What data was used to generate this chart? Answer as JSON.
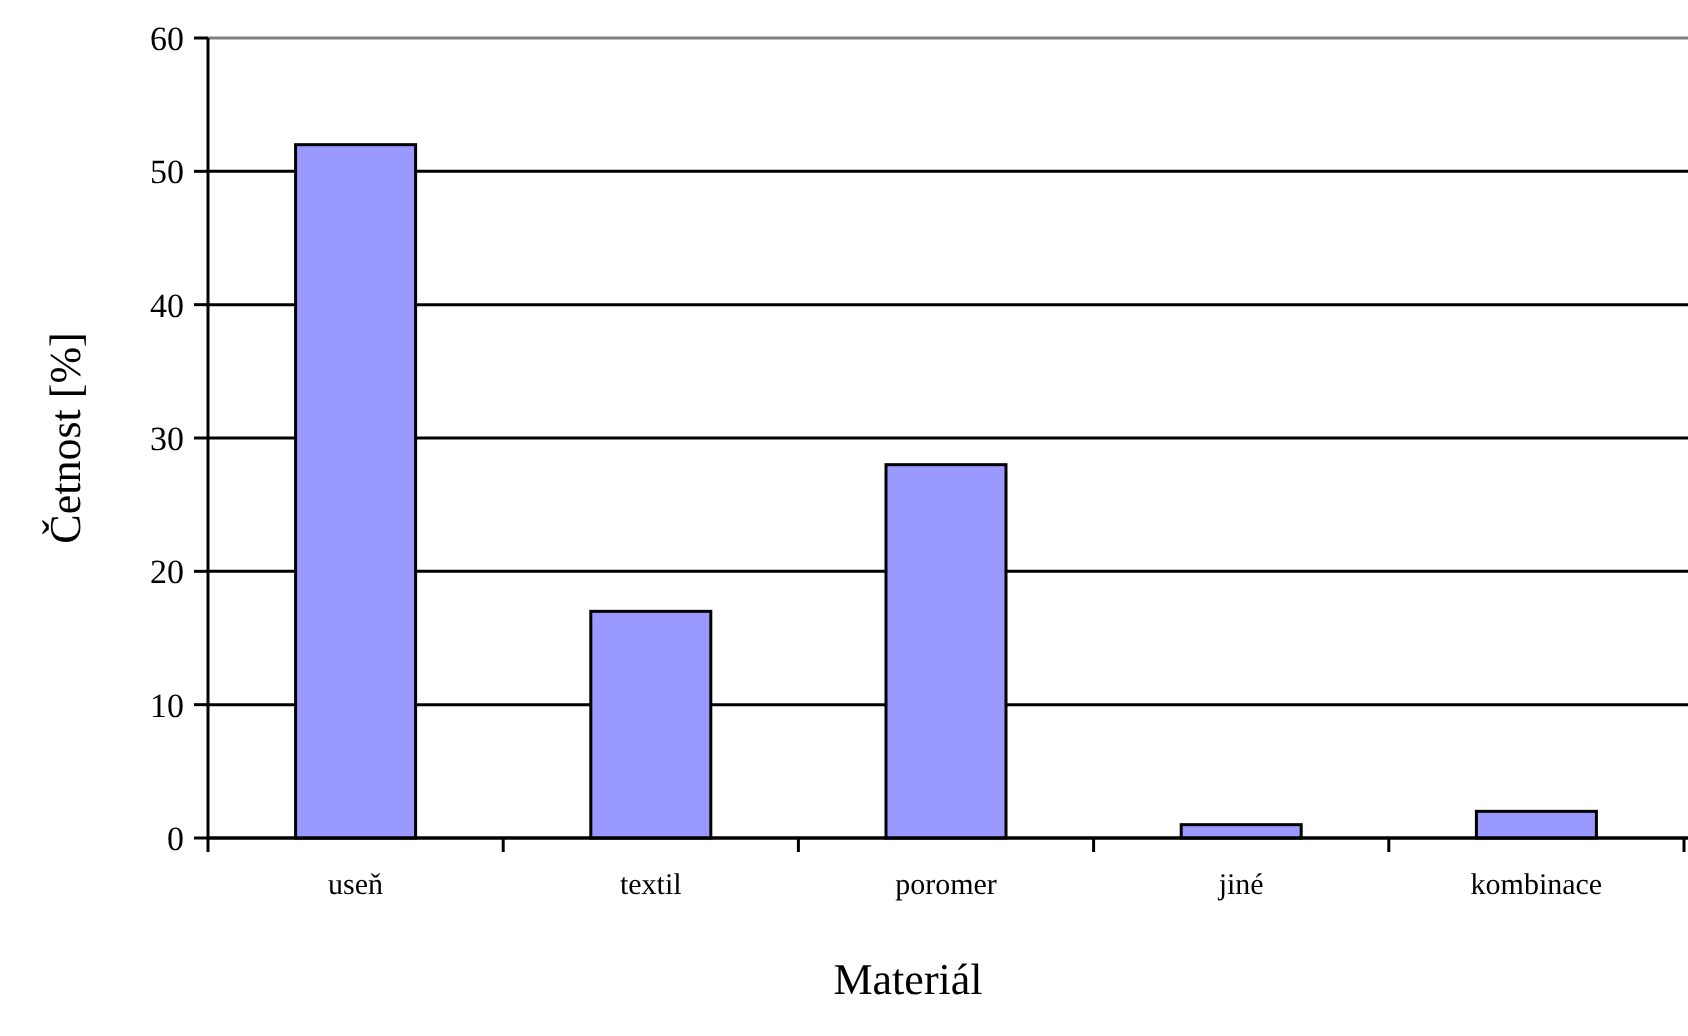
{
  "chart_data": {
    "type": "bar",
    "xlabel": "Materiál",
    "ylabel": "Četnost [%]",
    "categories": [
      "useň",
      "textil",
      "poromer",
      "jiné",
      "kombinace"
    ],
    "values": [
      52,
      17,
      28,
      1,
      2
    ],
    "color": "#9999ff",
    "ylim": [
      0,
      60
    ],
    "yticks": [
      0,
      10,
      20,
      30,
      40,
      50,
      60
    ],
    "grid": "y"
  }
}
